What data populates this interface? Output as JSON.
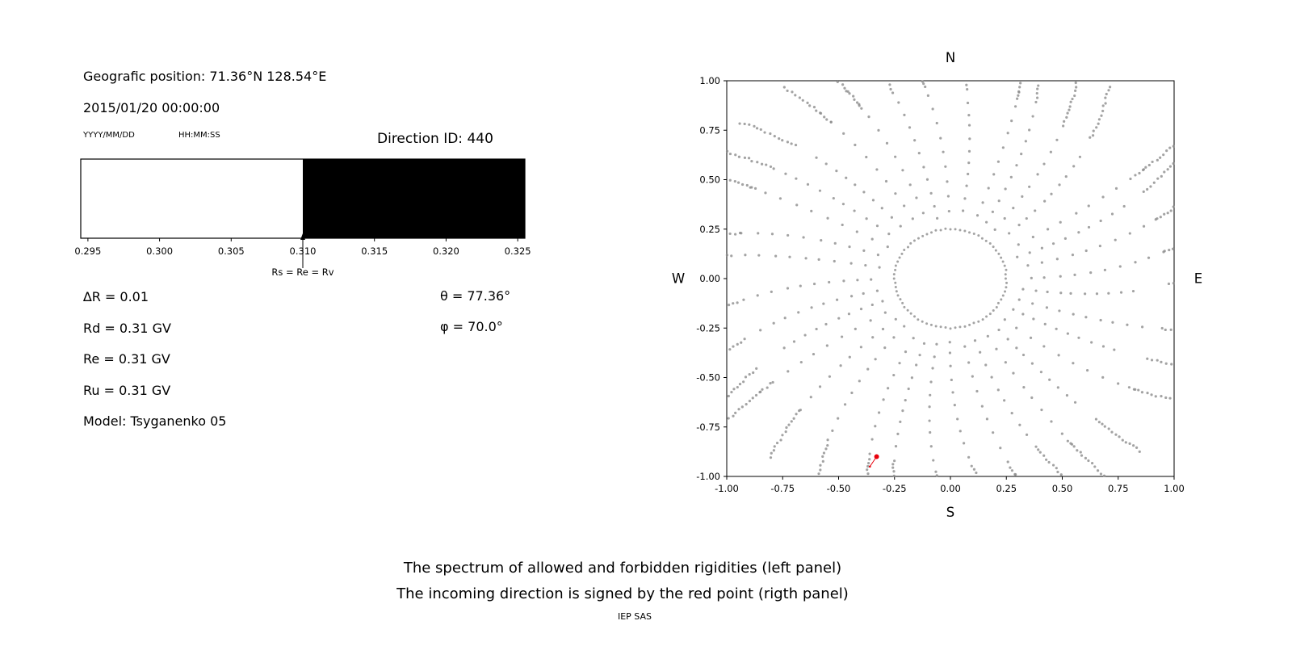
{
  "left_panel": {
    "geo_position": "Geografic position: 71.36°N 128.54°E",
    "datetime": "2015/01/20 00:00:00",
    "date_format": "YYYY/MM/DD",
    "time_format": "HH:MM:SS",
    "direction_id": "Direction ID: 440",
    "info_lines": [
      "∆R = 0.01",
      "Rd = 0.31 GV",
      "Re = 0.31 GV",
      "Ru = 0.31 GV",
      "Model: Tsyganenko 05"
    ],
    "theta": "θ = 77.36°",
    "phi": "φ = 70.0°"
  },
  "caption": {
    "line1": "The spectrum of allowed and forbidden rigidities (left panel)",
    "line2": "The incoming direction is signed by the red point (rigth panel)",
    "credit": "IEP SAS"
  },
  "chart_data": [
    {
      "id": "rigidity-spectrum",
      "type": "bar",
      "title": "Spectrum of allowed (white) and forbidden (black) rigidities",
      "xlim": [
        0.2945,
        0.3255
      ],
      "xtick_labels": [
        "0.295",
        "0.300",
        "0.305",
        "0.310",
        "0.315",
        "0.320",
        "0.325"
      ],
      "segments": [
        {
          "label": "allowed",
          "from": 0.2945,
          "to": 0.31,
          "fill": "#ffffff"
        },
        {
          "label": "forbidden",
          "from": 0.31,
          "to": 0.3255,
          "fill": "#000000"
        }
      ],
      "marker": {
        "x": 0.31,
        "label": "Rs = Re = Rv"
      }
    },
    {
      "id": "incoming-direction",
      "type": "scatter",
      "xlim": [
        -1.0,
        1.0
      ],
      "ylim": [
        -1.0,
        1.0
      ],
      "xtick_labels": [
        "-1.00",
        "-0.75",
        "-0.50",
        "-0.25",
        "0.00",
        "0.25",
        "0.50",
        "0.75",
        "1.00"
      ],
      "ytick_labels": [
        "1.00",
        "0.75",
        "0.50",
        "0.25",
        "0.00",
        "-0.25",
        "-0.50",
        "-0.75",
        "-1.00"
      ],
      "compass": {
        "north": "N",
        "south": "S",
        "west": "W",
        "east": "E"
      },
      "gray_dots": {
        "color": "#8c8c8c",
        "seed": 7,
        "inner_ring": {
          "radius": 0.25,
          "count": 72
        },
        "spokes": {
          "count": 36,
          "step_deg": 10,
          "r_start": 0.31,
          "r_step": 0.064,
          "n_linear": 10,
          "cluster_start": 0.95,
          "cluster_step": 0.02,
          "cluster_count": 14,
          "curvature_deg": 10,
          "clip": 1.0
        }
      },
      "red_point": {
        "x": -0.33,
        "y": -0.9,
        "color": "#e8000b",
        "tail": {
          "x": -0.36,
          "y": -0.95
        }
      }
    }
  ]
}
